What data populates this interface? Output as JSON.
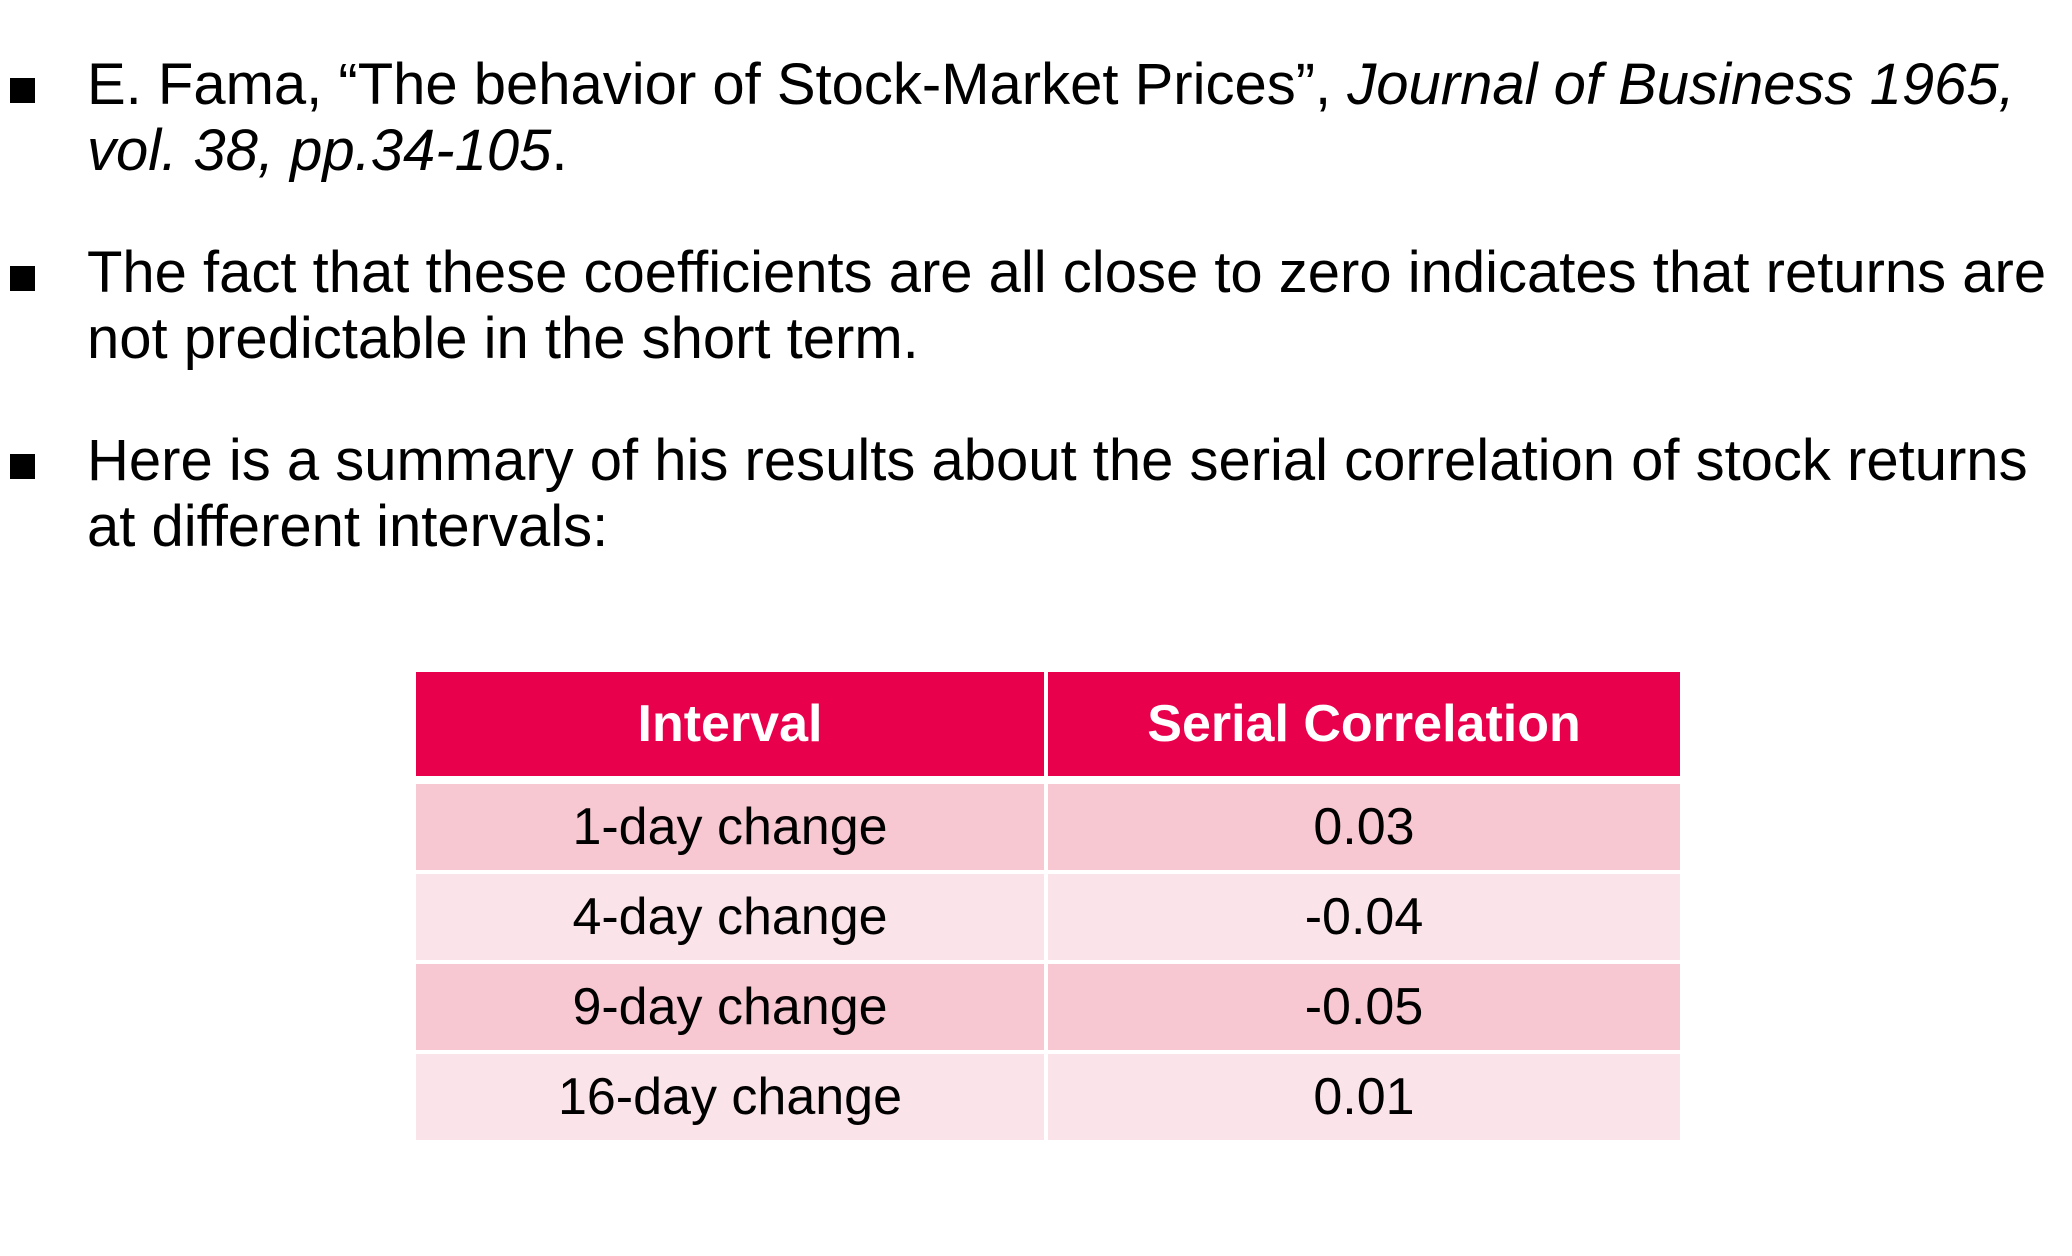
{
  "bullets": [
    {
      "plain": "E. Fama, “The behavior of Stock-Market Prices”, ",
      "italic": "Journal of Business 1965, vol. 38, pp.34-105",
      "tail": "."
    },
    {
      "text": "The fact that these coefficients are all close to zero indicates that returns are not predictable in the short term."
    },
    {
      "text": "Here is a summary of his results about the serial correlation of stock returns at different intervals:"
    }
  ],
  "table": {
    "headers": [
      "Interval",
      "Serial Correlation"
    ],
    "rows": [
      [
        "1-day change",
        "0.03"
      ],
      [
        "4-day change",
        "-0.04"
      ],
      [
        "9-day change",
        "-0.05"
      ],
      [
        "16-day change",
        "0.01"
      ]
    ]
  },
  "colors": {
    "header_bg": "#e8004d",
    "row_dark": "#f7c8d2",
    "row_light": "#fbe4e9"
  }
}
